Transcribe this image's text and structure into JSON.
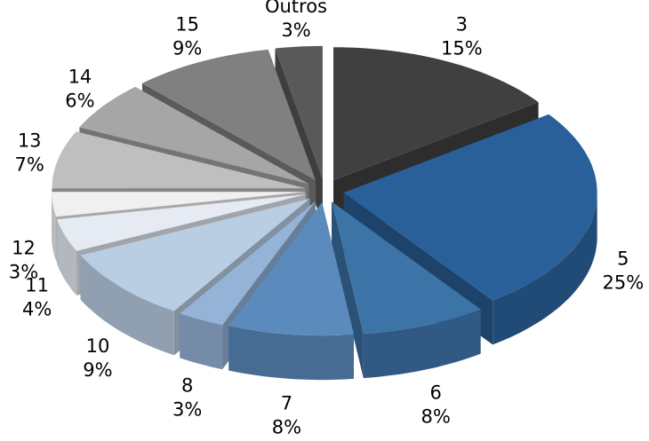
{
  "chart_data": {
    "type": "pie3d",
    "categories": [
      "3",
      "5",
      "6",
      "7",
      "8",
      "10",
      "11",
      "12",
      "13",
      "14",
      "15",
      "Outros"
    ],
    "values": [
      15,
      25,
      8,
      8,
      3,
      9,
      4,
      3,
      7,
      6,
      9,
      3
    ],
    "value_labels": [
      "15%",
      "25%",
      "8%",
      "8%",
      "3%",
      "9%",
      "4%",
      "3%",
      "7%",
      "6%",
      "9%",
      "3%"
    ],
    "colors": [
      "#404040",
      "#2a6099",
      "#3d74a8",
      "#5b8bbd",
      "#95b3d7",
      "#b9cde3",
      "#e6ebf3",
      "#f0f0f0",
      "#bfbfbf",
      "#a6a6a6",
      "#808080",
      "#595959"
    ]
  }
}
